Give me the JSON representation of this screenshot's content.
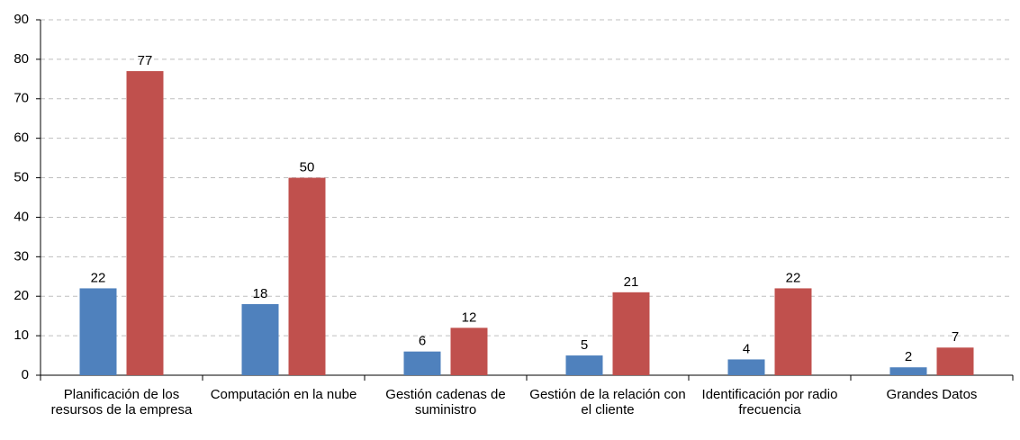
{
  "chart_data": {
    "type": "bar",
    "categories": [
      "Planificación de los resursos de la empresa",
      "Computación en la nube",
      "Gestión cadenas de suministro",
      "Gestión de la relación con el cliente",
      "Identificación por radio frecuencia",
      "Grandes Datos"
    ],
    "series": [
      {
        "color": "#4f81bd",
        "values": [
          22,
          18,
          6,
          5,
          4,
          2
        ]
      },
      {
        "color": "#c0504d",
        "values": [
          77,
          50,
          12,
          21,
          22,
          7
        ]
      }
    ],
    "ylim": [
      0,
      90
    ],
    "yticks": [
      0,
      10,
      20,
      30,
      40,
      50,
      60,
      70,
      80,
      90
    ],
    "grid": true
  }
}
